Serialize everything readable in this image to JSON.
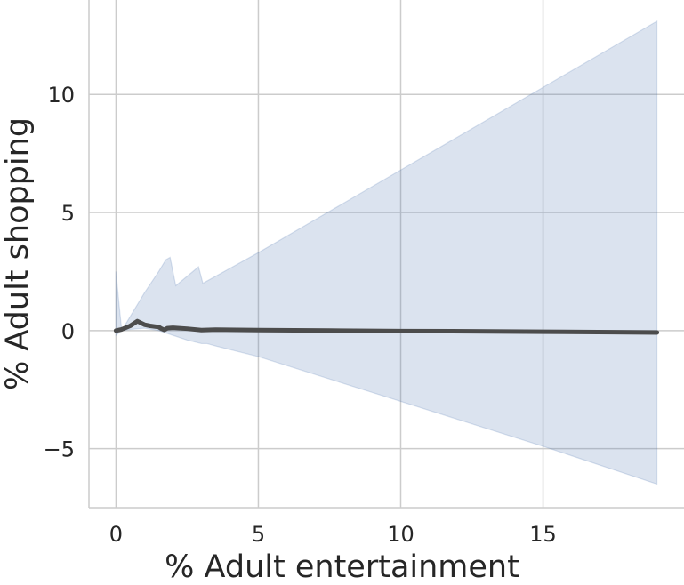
{
  "chart_data": {
    "type": "line",
    "xlabel": "% Adult entertainment",
    "ylabel": "% Adult shopping",
    "xlim": [
      -0.95,
      19.95
    ],
    "ylim": [
      -7.5,
      14.0
    ],
    "x_ticks": [
      0,
      5,
      10,
      15
    ],
    "y_ticks": [
      -5,
      0,
      5,
      10
    ],
    "x_tick_labels": [
      "0",
      "5",
      "10",
      "15"
    ],
    "y_tick_labels": [
      "−5",
      "0",
      "5",
      "10"
    ],
    "grid": true,
    "series": [
      {
        "x": [
          0,
          0.2,
          0.5,
          0.75,
          1.0,
          1.2,
          1.5,
          1.6,
          1.7,
          1.8,
          2.0,
          2.5,
          3.0,
          3.5,
          5,
          7.5,
          10,
          12.5,
          15,
          17.5,
          19
        ],
        "y": [
          0.0,
          0.05,
          0.2,
          0.4,
          0.25,
          0.2,
          0.15,
          0.08,
          0.03,
          0.1,
          0.12,
          0.08,
          0.02,
          0.04,
          0.02,
          0.0,
          -0.02,
          -0.03,
          -0.05,
          -0.07,
          -0.08
        ],
        "color": "#4c4c4c"
      }
    ],
    "confidence_band": {
      "color": "#4c72b0",
      "upper": {
        "x": [
          0,
          0.1,
          0.2,
          0.5,
          1.0,
          1.5,
          1.75,
          1.9,
          2.1,
          2.9,
          3.05,
          5,
          10,
          15,
          19
        ],
        "y": [
          2.5,
          1.2,
          0.0,
          0.6,
          1.6,
          2.5,
          3.0,
          3.1,
          1.9,
          2.7,
          2.0,
          3.3,
          6.8,
          10.3,
          13.1
        ]
      },
      "lower": {
        "x": [
          0,
          0.2,
          0.5,
          1.0,
          1.5,
          2.0,
          2.5,
          3.0,
          3.2,
          3.5,
          5,
          10,
          15,
          19
        ],
        "y": [
          -0.2,
          0.0,
          0.05,
          0.1,
          0.0,
          -0.2,
          -0.4,
          -0.55,
          -0.55,
          -0.65,
          -1.1,
          -3.0,
          -4.9,
          -6.5
        ]
      }
    }
  }
}
